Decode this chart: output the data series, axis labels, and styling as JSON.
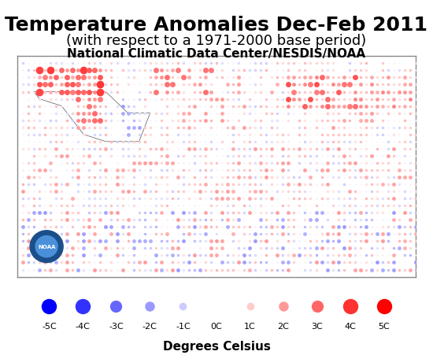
{
  "title": "Temperature Anomalies Dec-Feb 2011",
  "subtitle": "(with respect to a 1971-2000 base period)",
  "source": "National Climatic Data Center/NESDIS/NOAA",
  "colorbar_label": "Degrees Celsius",
  "colorbar_ticks": [
    -5,
    -4,
    -3,
    -2,
    -1,
    0,
    1,
    2,
    3,
    4,
    5
  ],
  "colorbar_labels": [
    "-5C",
    "-4C",
    "-3C",
    "-2C",
    "-1C",
    "0C",
    "1C",
    "2C",
    "3C",
    "4C",
    "5C"
  ],
  "map_background": "#ffffff",
  "fig_background": "#ffffff",
  "border_color": "#aaaaaa",
  "title_fontsize": 18,
  "subtitle_fontsize": 13,
  "source_fontsize": 11
}
